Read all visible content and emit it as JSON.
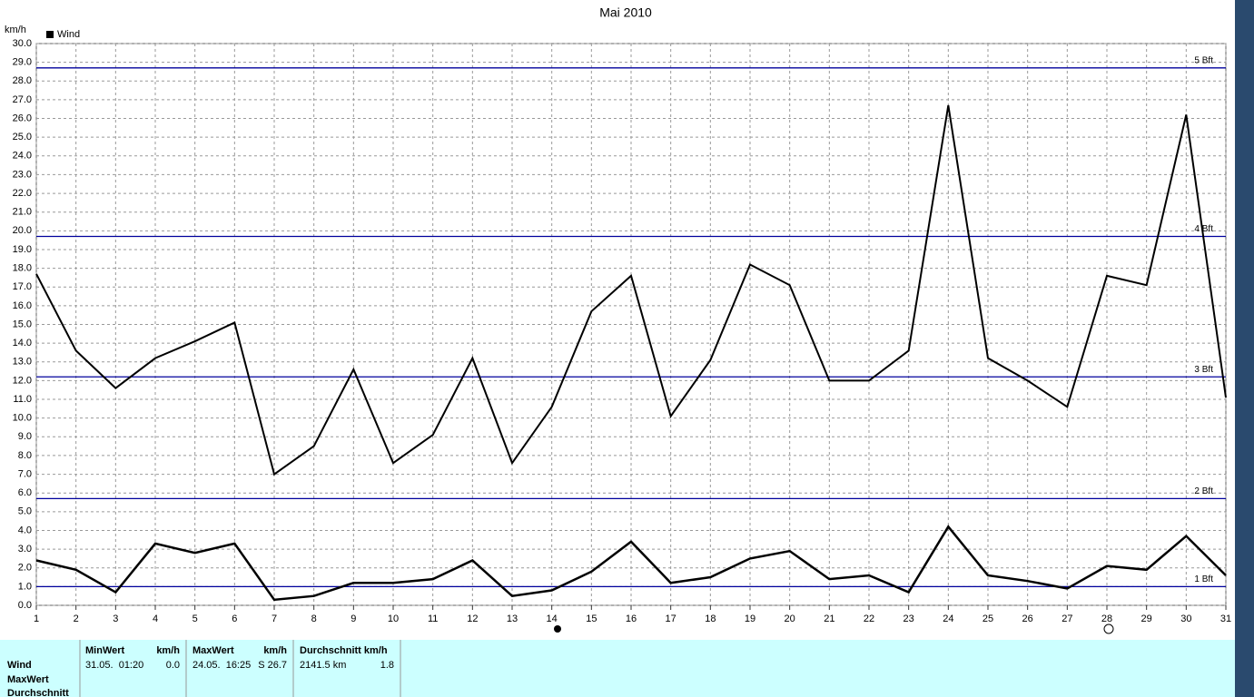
{
  "chart_data": {
    "type": "line",
    "title": "Mai 2010",
    "y_label": "km/h",
    "x": [
      1,
      2,
      3,
      4,
      5,
      6,
      7,
      8,
      9,
      10,
      11,
      12,
      13,
      14,
      15,
      16,
      17,
      18,
      19,
      20,
      21,
      22,
      23,
      24,
      25,
      26,
      27,
      28,
      29,
      30,
      31
    ],
    "series": [
      {
        "name": "Wind",
        "color": "#000000",
        "values": [
          17.7,
          13.6,
          11.6,
          13.2,
          14.1,
          15.1,
          7.0,
          8.5,
          12.6,
          7.6,
          9.1,
          13.2,
          7.6,
          10.6,
          15.7,
          17.6,
          10.1,
          13.1,
          18.2,
          17.1,
          12.0,
          12.0,
          13.6,
          26.7,
          13.2,
          12.0,
          10.6,
          17.6,
          17.1,
          26.2,
          11.1
        ]
      },
      {
        "color": "#000000",
        "values": [
          2.4,
          1.9,
          0.7,
          3.3,
          2.8,
          3.3,
          0.3,
          0.5,
          1.2,
          1.2,
          1.4,
          2.4,
          0.5,
          0.8,
          1.8,
          3.4,
          1.2,
          1.5,
          2.5,
          2.9,
          1.4,
          1.6,
          0.7,
          4.2,
          1.6,
          1.3,
          0.9,
          2.1,
          1.9,
          3.7,
          1.6
        ]
      }
    ],
    "xlim": [
      1,
      31
    ],
    "xticks": [
      1,
      2,
      3,
      4,
      5,
      6,
      7,
      8,
      9,
      10,
      11,
      12,
      13,
      14,
      15,
      16,
      17,
      18,
      19,
      20,
      21,
      22,
      23,
      24,
      25,
      26,
      27,
      28,
      29,
      30,
      31
    ],
    "ylim": [
      0,
      30
    ],
    "yticks": [
      {
        "value": 0,
        "label": "0.0"
      },
      {
        "value": 1,
        "label": "1.0"
      },
      {
        "value": 2,
        "label": "2.0"
      },
      {
        "value": 3,
        "label": "3.0"
      },
      {
        "value": 4,
        "label": "4.0"
      },
      {
        "value": 5,
        "label": "5.0"
      },
      {
        "value": 6,
        "label": "6.0"
      },
      {
        "value": 7,
        "label": "7.0"
      },
      {
        "value": 8,
        "label": "8.0"
      },
      {
        "value": 9,
        "label": "9.0"
      },
      {
        "value": 10,
        "label": "10.0"
      },
      {
        "value": 11,
        "label": "11.0"
      },
      {
        "value": 12,
        "label": "12.0"
      },
      {
        "value": 13,
        "label": "13.0"
      },
      {
        "value": 14,
        "label": "14.0"
      },
      {
        "value": 15,
        "label": "15.0"
      },
      {
        "value": 16,
        "label": "16.0"
      },
      {
        "value": 17,
        "label": "17.0"
      },
      {
        "value": 18,
        "label": "18.0"
      },
      {
        "value": 19,
        "label": "19.0"
      },
      {
        "value": 20,
        "label": "20.0"
      },
      {
        "value": 21,
        "label": "21.0"
      },
      {
        "value": 22,
        "label": "22.0"
      },
      {
        "value": 23,
        "label": "23.0"
      },
      {
        "value": 24,
        "label": "24.0"
      },
      {
        "value": 25,
        "label": "25.0"
      },
      {
        "value": 26,
        "label": "26.0"
      },
      {
        "value": 27,
        "label": "27.0"
      },
      {
        "value": 28,
        "label": "28.0"
      },
      {
        "value": 29,
        "label": "29.0"
      },
      {
        "value": 30,
        "label": "30.0"
      }
    ],
    "grid": true,
    "legend": "top-left",
    "reference_lines": [
      {
        "value": 1.0,
        "label": "1 Bft"
      },
      {
        "value": 5.7,
        "label": "2 Bft"
      },
      {
        "value": 12.2,
        "label": "3 Bft"
      },
      {
        "value": 19.7,
        "label": "4 Bft"
      },
      {
        "value": 28.7,
        "label": "5 Bft"
      }
    ],
    "reference_color": "#00009c"
  },
  "table": {
    "row_labels": [
      "Wind",
      "MaxWert",
      "Durchschnitt"
    ],
    "min_header": "MinWert",
    "min_unit": "km/h",
    "max_header": "MaxWert",
    "max_unit": "km/h",
    "avg_header": "Durchschnitt km/h",
    "min_time": "31.05.  01:20",
    "min_value": "0.0",
    "max_time": "24.05.  16:25",
    "max_value": "S 26.7",
    "avg_distance": "2141.5 km",
    "avg_value": "1.8"
  }
}
